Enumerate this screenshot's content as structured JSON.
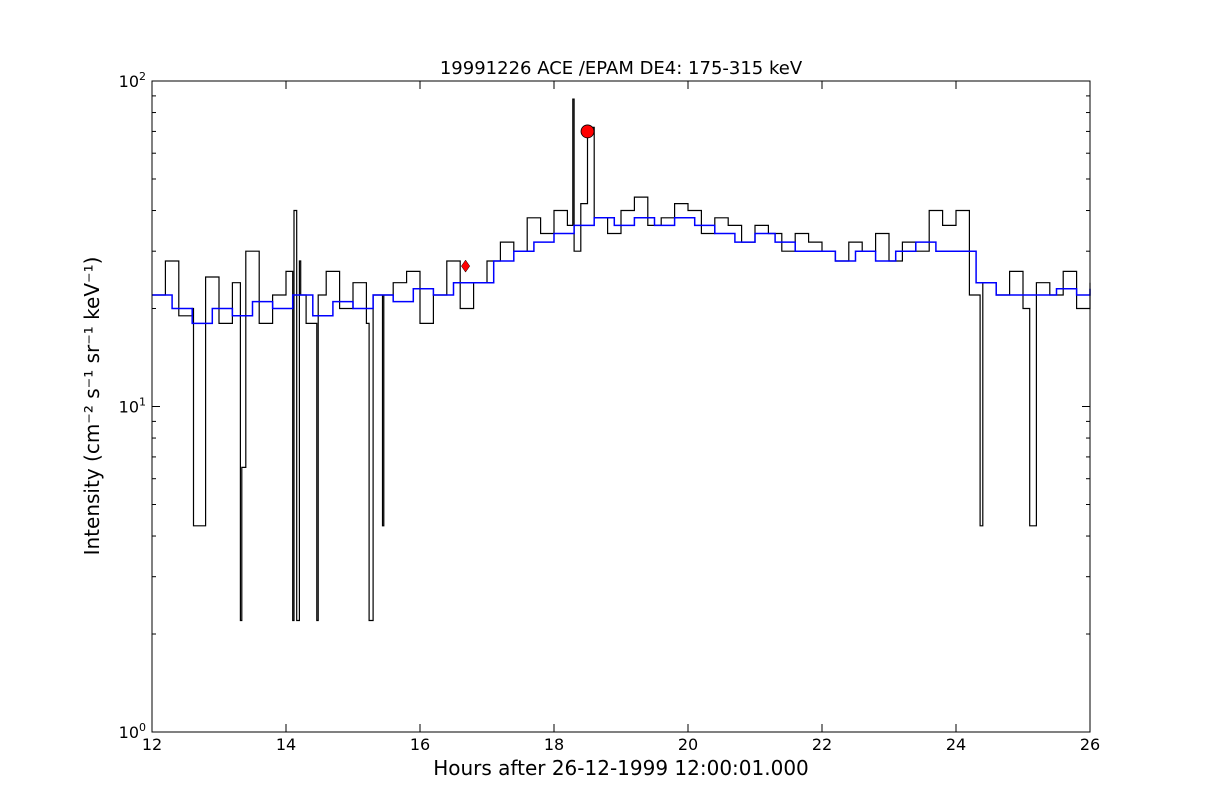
{
  "chart_data": {
    "type": "line",
    "title": "19991226 ACE /EPAM DE4: 175-315 keV",
    "xlabel": "Hours after 26-12-1999 12:00:01.000",
    "ylabel": "Intensity (cm⁻² s⁻¹ sr⁻¹ keV⁻¹)",
    "xlim": [
      12,
      26
    ],
    "ylim": [
      1,
      100
    ],
    "yscale": "log",
    "xticks": [
      "12",
      "14",
      "16",
      "18",
      "20",
      "22",
      "24",
      "26"
    ],
    "yticks": [
      {
        "base": "10",
        "exp": "0"
      },
      {
        "base": "10",
        "exp": "1"
      },
      {
        "base": "10",
        "exp": "2"
      }
    ],
    "grid": false,
    "series": [
      {
        "style": "raw",
        "color": "#000000",
        "x": [
          12.0,
          12.2,
          12.4,
          12.6,
          12.62,
          12.8,
          13.0,
          13.2,
          13.32,
          13.34,
          13.4,
          13.6,
          13.8,
          14.0,
          14.1,
          14.12,
          14.16,
          14.2,
          14.22,
          14.3,
          14.46,
          14.48,
          14.6,
          14.8,
          15.0,
          15.2,
          15.24,
          15.3,
          15.44,
          15.46,
          15.6,
          15.8,
          16.0,
          16.2,
          16.4,
          16.6,
          16.8,
          17.0,
          17.2,
          17.4,
          17.6,
          17.8,
          18.0,
          18.2,
          18.28,
          18.3,
          18.4,
          18.5,
          18.6,
          18.8,
          19.0,
          19.2,
          19.4,
          19.6,
          19.8,
          20.0,
          20.2,
          20.4,
          20.6,
          20.8,
          21.0,
          21.2,
          21.4,
          21.6,
          21.8,
          22.0,
          22.2,
          22.4,
          22.6,
          22.8,
          23.0,
          23.2,
          23.4,
          23.6,
          23.8,
          24.0,
          24.2,
          24.36,
          24.4,
          24.6,
          24.8,
          25.0,
          25.1,
          25.2,
          25.4,
          25.6,
          25.8,
          26.0
        ],
        "values": [
          22,
          28,
          19,
          20,
          4.3,
          25,
          18,
          24,
          2.2,
          6.5,
          30,
          18,
          22,
          26,
          2.2,
          40,
          2.2,
          28,
          22,
          18,
          2.2,
          22,
          26,
          20,
          24,
          18,
          2.2,
          22,
          4.3,
          22,
          24,
          26,
          18,
          22,
          28,
          20,
          24,
          28,
          32,
          30,
          38,
          34,
          40,
          36,
          88,
          30,
          42,
          72,
          38,
          34,
          40,
          44,
          36,
          38,
          42,
          40,
          34,
          38,
          36,
          32,
          36,
          34,
          30,
          34,
          32,
          30,
          28,
          32,
          30,
          34,
          28,
          32,
          30,
          40,
          36,
          40,
          22,
          4.3,
          24,
          22,
          26,
          20,
          4.3,
          24,
          22,
          26,
          20,
          24
        ]
      },
      {
        "style": "smoothed",
        "color": "#0000ff",
        "x": [
          12.0,
          12.3,
          12.6,
          12.9,
          13.2,
          13.5,
          13.8,
          14.1,
          14.4,
          14.7,
          15.0,
          15.3,
          15.6,
          15.9,
          16.2,
          16.5,
          16.8,
          17.1,
          17.4,
          17.7,
          18.0,
          18.3,
          18.6,
          18.9,
          19.2,
          19.5,
          19.8,
          20.1,
          20.4,
          20.7,
          21.0,
          21.3,
          21.6,
          21.9,
          22.2,
          22.5,
          22.8,
          23.1,
          23.4,
          23.7,
          24.0,
          24.3,
          24.6,
          24.9,
          25.2,
          25.5,
          25.8,
          26.0
        ],
        "values": [
          22,
          20,
          18,
          20,
          19,
          21,
          20,
          22,
          19,
          21,
          20,
          22,
          21,
          23,
          22,
          24,
          24,
          28,
          30,
          32,
          34,
          36,
          38,
          36,
          38,
          36,
          38,
          36,
          34,
          32,
          34,
          32,
          30,
          30,
          28,
          30,
          28,
          30,
          32,
          30,
          30,
          24,
          22,
          22,
          22,
          23,
          22,
          23
        ]
      }
    ],
    "markers": [
      {
        "shape": "circle",
        "color": "#ff0000",
        "x": 18.5,
        "y": 70
      },
      {
        "shape": "diamond",
        "color": "#ff0000",
        "x": 16.68,
        "y": 27
      }
    ]
  }
}
